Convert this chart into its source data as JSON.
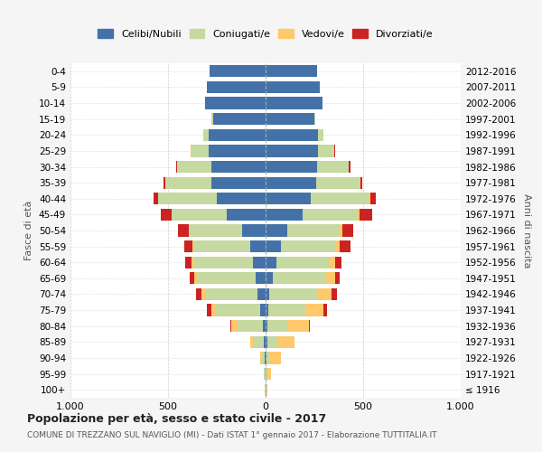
{
  "age_groups": [
    "100+",
    "95-99",
    "90-94",
    "85-89",
    "80-84",
    "75-79",
    "70-74",
    "65-69",
    "60-64",
    "55-59",
    "50-54",
    "45-49",
    "40-44",
    "35-39",
    "30-34",
    "25-29",
    "20-24",
    "15-19",
    "10-14",
    "5-9",
    "0-4"
  ],
  "birth_years": [
    "≤ 1916",
    "1917-1921",
    "1922-1926",
    "1927-1931",
    "1932-1936",
    "1937-1941",
    "1942-1946",
    "1947-1951",
    "1952-1956",
    "1957-1961",
    "1962-1966",
    "1967-1971",
    "1972-1976",
    "1977-1981",
    "1982-1986",
    "1987-1991",
    "1992-1996",
    "1997-2001",
    "2002-2006",
    "2007-2011",
    "2012-2016"
  ],
  "male": {
    "celibi": [
      2,
      2,
      5,
      8,
      15,
      30,
      40,
      50,
      65,
      80,
      120,
      200,
      250,
      280,
      280,
      290,
      290,
      270,
      310,
      300,
      285
    ],
    "coniugati": [
      2,
      5,
      15,
      50,
      130,
      230,
      270,
      300,
      305,
      290,
      270,
      280,
      300,
      230,
      170,
      90,
      30,
      10,
      0,
      0,
      0
    ],
    "vedovi": [
      1,
      3,
      10,
      20,
      30,
      20,
      20,
      15,
      8,
      5,
      5,
      3,
      3,
      2,
      2,
      2,
      0,
      0,
      0,
      0,
      0
    ],
    "divorziati": [
      0,
      0,
      0,
      2,
      5,
      20,
      25,
      25,
      35,
      40,
      55,
      55,
      20,
      10,
      8,
      3,
      0,
      0,
      0,
      0,
      0
    ]
  },
  "female": {
    "nubili": [
      2,
      2,
      5,
      8,
      10,
      15,
      20,
      35,
      55,
      80,
      110,
      190,
      230,
      260,
      265,
      270,
      270,
      250,
      290,
      280,
      265
    ],
    "coniugate": [
      2,
      5,
      20,
      50,
      100,
      190,
      250,
      270,
      270,
      280,
      270,
      280,
      300,
      220,
      160,
      80,
      25,
      5,
      0,
      0,
      0
    ],
    "vedove": [
      5,
      20,
      55,
      90,
      110,
      90,
      70,
      50,
      30,
      20,
      15,
      10,
      5,
      5,
      3,
      2,
      0,
      0,
      0,
      0,
      0
    ],
    "divorziate": [
      0,
      0,
      0,
      2,
      5,
      20,
      25,
      25,
      35,
      55,
      55,
      65,
      30,
      10,
      8,
      3,
      0,
      0,
      0,
      0,
      0
    ]
  },
  "colors": {
    "celibi": "#4472a8",
    "coniugati": "#c5d9a0",
    "vedovi": "#ffc86b",
    "divorziati": "#cc2222"
  },
  "title": "Popolazione per età, sesso e stato civile - 2017",
  "subtitle": "COMUNE DI TREZZANO SUL NAVIGLIO (MI) - Dati ISTAT 1° gennaio 2017 - Elaborazione TUTTITALIA.IT",
  "ylabel_left": "Fasce di età",
  "ylabel_right": "Anni di nascita",
  "xlim": 1000,
  "background_color": "#f5f5f5",
  "plot_bg": "#ffffff"
}
